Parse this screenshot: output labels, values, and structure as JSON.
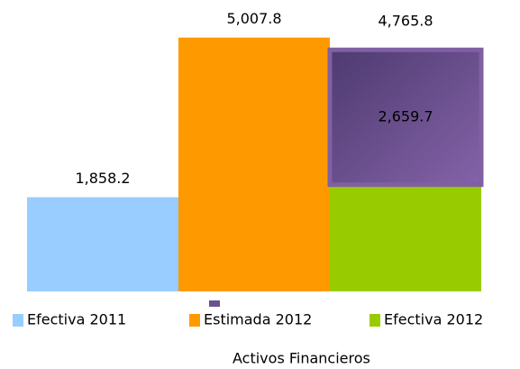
{
  "chart_data": {
    "type": "stacked_bar",
    "categories": [
      null,
      null,
      null
    ],
    "series": [
      {
        "name": "Efectiva 2011",
        "color": "#99ccff",
        "values": [
          1858.2,
          null,
          null
        ],
        "value_labels": [
          "1,858.2",
          null,
          null
        ]
      },
      {
        "name": "Estimada 2012",
        "color": "#ff9900",
        "values": [
          null,
          5007.8,
          null
        ],
        "value_labels": [
          null,
          "5,007.8",
          null
        ]
      },
      {
        "name": "Efectiva 2012",
        "color": "#99cc00",
        "values": [
          null,
          null,
          2106.1
        ]
      },
      {
        "name": "Activos Financieros",
        "color": "#6a5190",
        "values": [
          null,
          null,
          2659.7
        ],
        "value_labels": [
          null,
          null,
          "2,659.7"
        ]
      }
    ],
    "annotations": [
      {
        "text": "4,765.8",
        "value": 4765.8
      }
    ],
    "ylim": [
      0,
      5500
    ]
  }
}
